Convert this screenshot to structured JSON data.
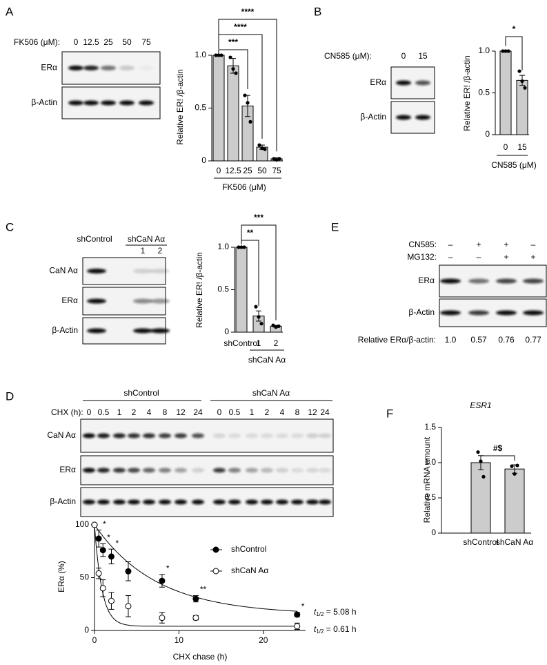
{
  "panel_labels": [
    "A",
    "B",
    "C",
    "D",
    "E",
    "F"
  ],
  "blots": {
    "A": {
      "treatment": "FK506 (μM):",
      "lanes": [
        "0",
        "12.5",
        "25",
        "50",
        "75"
      ],
      "rows": [
        "ERα",
        "β-Actin"
      ]
    },
    "B": {
      "treatment": "CN585 (μM):",
      "lanes": [
        "0",
        "15"
      ],
      "rows": [
        "ERα",
        "β-Actin"
      ]
    },
    "C": {
      "groups": [
        "shControl",
        "shCaN Aα"
      ],
      "lanes": [
        "1",
        "2"
      ],
      "rows": [
        "CaN Aα",
        "ERα",
        "β-Actin"
      ]
    },
    "D": {
      "groups": [
        "shControl",
        "shCaN Aα"
      ],
      "treatment": "CHX (h):",
      "lanes": [
        [
          "0",
          "0.5",
          "1",
          "2",
          "4",
          "8",
          "12",
          "24"
        ],
        [
          "0",
          "0.5",
          "1",
          "2",
          "4",
          "8",
          "12",
          "24"
        ]
      ],
      "rows": [
        "CaN Aα",
        "ERα",
        "β-Actin"
      ]
    },
    "E": {
      "treatments": [
        {
          "name": "CN585:",
          "signs": [
            "–",
            "+",
            "+",
            "–"
          ]
        },
        {
          "name": "MG132:",
          "signs": [
            "–",
            "–",
            "+",
            "+"
          ]
        }
      ],
      "rows": [
        "ERα",
        "β-Actin"
      ],
      "quant_label": "Relative ERα/β-actin:",
      "values": [
        1,
        0.57,
        0.76,
        0.77
      ],
      "value_labels": [
        "1.0",
        "0.57",
        "0.76",
        "0.77"
      ]
    }
  },
  "chart_data": [
    {
      "type": "bar",
      "ylabel": "Relative ER! /β-actin",
      "xlabel": "FK506 (μM)",
      "categories": [
        "0",
        "12.5",
        "25",
        "50",
        "75"
      ],
      "values": [
        1,
        0.9,
        0.52,
        0.13,
        0.02
      ],
      "errors": [
        0,
        0.07,
        0.1,
        0.02,
        0.01
      ],
      "points": [
        [
          1,
          1,
          1
        ],
        [
          0.98,
          0.87,
          0.83
        ],
        [
          0.62,
          0.55,
          0.37
        ],
        [
          0.15,
          0.12,
          0.11
        ],
        [
          0.02,
          0.01,
          0.02
        ]
      ],
      "color": "#cccccc",
      "ylim": [
        0,
        1
      ],
      "yticks": [
        0,
        0.5,
        {
          "value": 1,
          "label": "1.0"
        }
      ],
      "significance": [
        {
          "label": "***",
          "to": "25"
        },
        {
          "label": "****",
          "to": "50"
        },
        {
          "label": "****",
          "to": "75"
        }
      ]
    },
    {
      "type": "bar",
      "ylabel": "Relative ER! /β-actin",
      "xlabel": "CN585 (μM)",
      "categories": [
        "0",
        "15"
      ],
      "values": [
        1,
        0.65
      ],
      "errors": [
        0,
        0.06
      ],
      "points": [
        [
          1,
          1,
          1
        ],
        [
          0.76,
          0.64,
          0.56
        ]
      ],
      "color": "#cccccc",
      "ylim": [
        0,
        1
      ],
      "yticks": [
        0,
        0.5,
        {
          "value": 1,
          "label": "1.0"
        }
      ],
      "significance": [
        {
          "label": "*",
          "to": "15"
        }
      ]
    },
    {
      "type": "bar",
      "ylabel": "Relative ER! /β-actin",
      "group_label": "shCaN Aα",
      "categories": [
        "shControl",
        "1",
        "2"
      ],
      "values": [
        1,
        0.19,
        0.07
      ],
      "errors": [
        0,
        0.06,
        0.01
      ],
      "points": [
        [
          1,
          1,
          1
        ],
        [
          0.3,
          0.18,
          0.1
        ],
        [
          0.08,
          0.06,
          0.07
        ]
      ],
      "color": "#cccccc",
      "ylim": [
        0,
        1
      ],
      "yticks": [
        0,
        0.5,
        {
          "value": 1,
          "label": "1.0"
        }
      ],
      "significance": [
        {
          "label": "**",
          "to": "1"
        },
        {
          "label": "***",
          "to": "2"
        }
      ]
    },
    {
      "type": "bar",
      "title": "ESR1",
      "ylabel": "Relative mRNA amount",
      "categories": [
        "shControl",
        "shCaN Aα"
      ],
      "values": [
        1,
        0.91
      ],
      "errors": [
        0.1,
        0.06
      ],
      "points": [
        [
          1.15,
          1.02,
          0.8
        ],
        [
          0.95,
          0.84,
          0.96
        ]
      ],
      "color": "#cccccc",
      "ylim": [
        0,
        1.5
      ],
      "yticks": [
        0,
        0.5,
        {
          "value": 1,
          "label": "1.0"
        },
        1.5
      ],
      "significance": [
        {
          "label": "#$",
          "to": "shCaN Aα"
        }
      ]
    },
    {
      "type": "line",
      "xlabel": "CHX chase (h)",
      "ylabel": "ERα (%)",
      "x": [
        0,
        0.5,
        1,
        2,
        4,
        8,
        12,
        24
      ],
      "xlim": [
        0,
        25
      ],
      "xticks": [
        0,
        10,
        20
      ],
      "ylim": [
        0,
        100
      ],
      "yticks": [
        0,
        50,
        100
      ],
      "series": [
        {
          "name": "shControl",
          "color": "#000000",
          "filled": true,
          "values": [
            100,
            87,
            76,
            70,
            56,
            47,
            30,
            15
          ],
          "errors": [
            0,
            8,
            6,
            7,
            9,
            6,
            3,
            2
          ],
          "point_labels": [
            null,
            "*",
            "*",
            "*",
            null,
            "*",
            "**",
            "*"
          ],
          "half_life": 5.08,
          "half_life_label": [
            "t",
            "1/2",
            " = 5.08 h"
          ]
        },
        {
          "name": "shCaN Aα",
          "color": "#000000",
          "filled": false,
          "values": [
            100,
            54,
            40,
            28,
            23,
            12,
            12,
            4
          ],
          "errors": [
            0,
            5,
            8,
            8,
            10,
            5,
            2,
            3
          ],
          "half_life": 0.61,
          "half_life_label": [
            "t",
            "1/2",
            " = 0.61 h"
          ]
        }
      ]
    }
  ]
}
